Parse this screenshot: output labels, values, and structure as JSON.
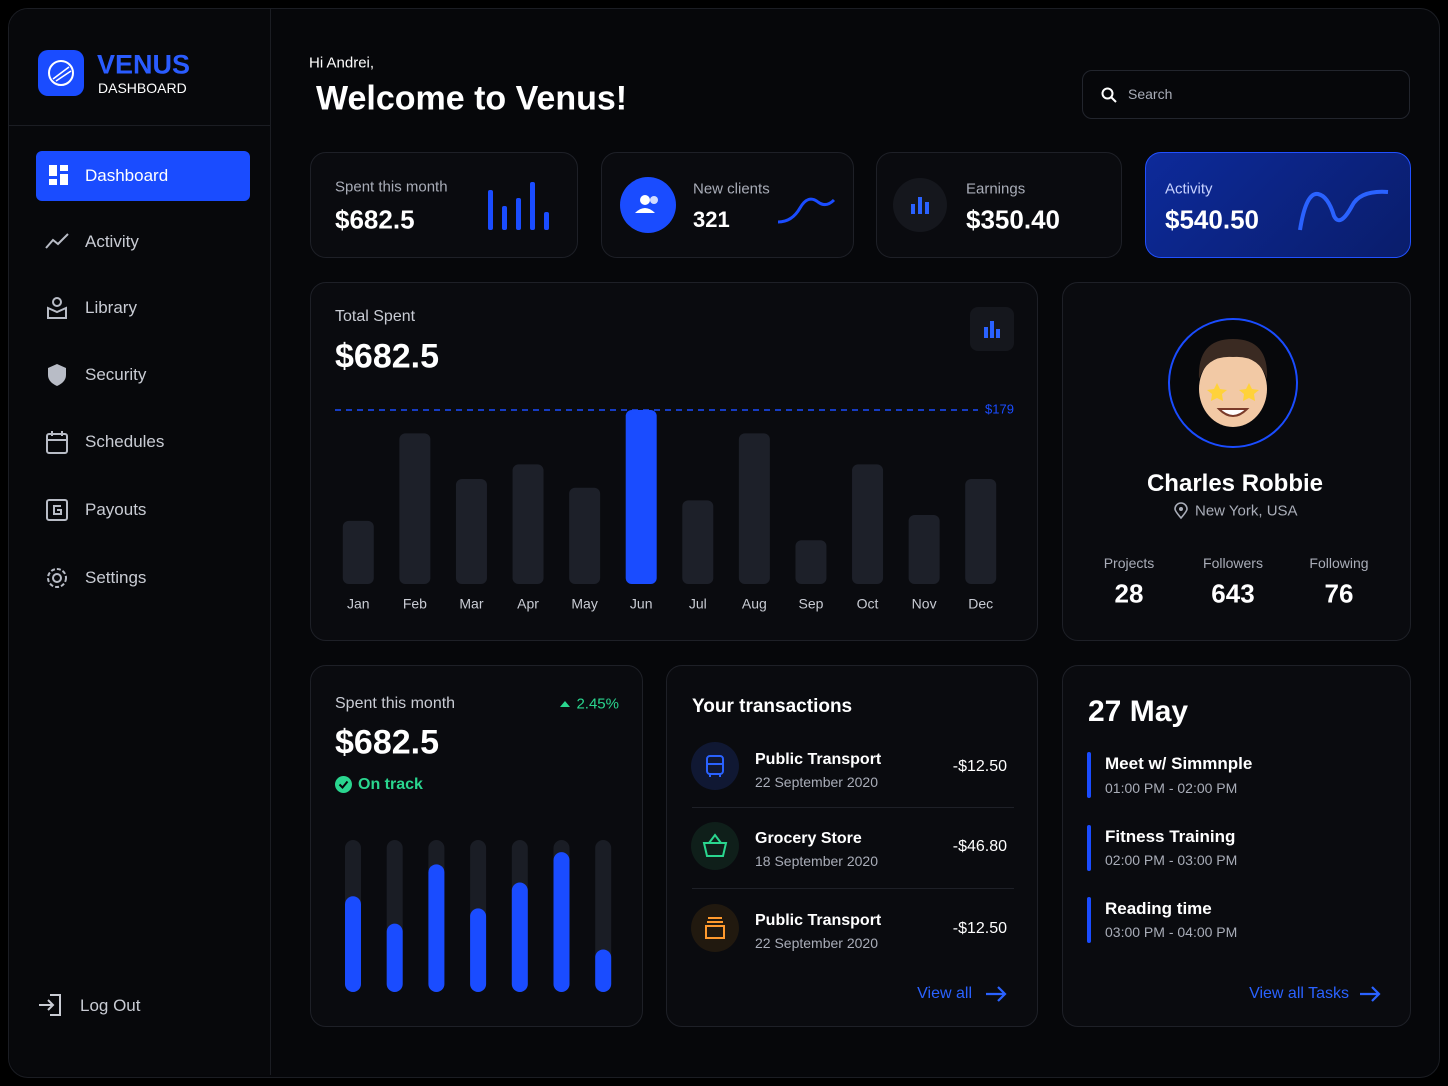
{
  "sidebar": {
    "brand": "VENUS",
    "brand_sub": "DASHBOARD",
    "nav": [
      {
        "label": "Dashboard",
        "active": true
      },
      {
        "label": "Activity"
      },
      {
        "label": "Library"
      },
      {
        "label": "Security"
      },
      {
        "label": "Schedules"
      },
      {
        "label": "Payouts"
      },
      {
        "label": "Settings"
      }
    ],
    "logout": "Log Out"
  },
  "header": {
    "greeting": "Hi Andrei,",
    "title": "Welcome to Venus!",
    "search_placeholder": "Search"
  },
  "stat_cards": [
    {
      "label": "Spent this month",
      "value": "$682.5"
    },
    {
      "label": "New clients",
      "value": "321"
    },
    {
      "label": "Earnings",
      "value": "$350.40"
    },
    {
      "label": "Activity",
      "value": "$540.50"
    }
  ],
  "total_spent": {
    "label": "Total Spent",
    "value": "$682.5"
  },
  "chart_data": [
    {
      "type": "bar",
      "categories": [
        "Jan",
        "Feb",
        "Mar",
        "Apr",
        "May",
        "Jun",
        "Jul",
        "Aug",
        "Sep",
        "Oct",
        "Nov",
        "Dec"
      ],
      "values": [
        65,
        155,
        108,
        123,
        99,
        179,
        86,
        155,
        45,
        123,
        71,
        108
      ],
      "color": "#1d2029",
      "highlight": "Jun",
      "highlight_color": "#1a4cff",
      "reference_line": {
        "value": 179,
        "label": "$179"
      },
      "ylim": [
        0,
        179
      ]
    },
    {
      "type": "bar",
      "values": [
        63,
        45,
        84,
        55,
        72,
        92,
        28
      ],
      "color": "#1a4cff",
      "track_color": "#1a1d25",
      "ylim": [
        0,
        100
      ]
    }
  ],
  "spent_card": {
    "label": "Spent this month",
    "value": "$682.5",
    "change": "2.45%",
    "status": "On track"
  },
  "profile": {
    "name": "Charles Robbie",
    "location": "New York, USA",
    "stats": [
      {
        "label": "Projects",
        "value": "28"
      },
      {
        "label": "Followers",
        "value": "643"
      },
      {
        "label": "Following",
        "value": "76"
      }
    ]
  },
  "transactions": {
    "title": "Your transactions",
    "items": [
      {
        "name": "Public Transport",
        "date": "22 September 2020",
        "amount": "-$12.50"
      },
      {
        "name": "Grocery Store",
        "date": "18 September 2020",
        "amount": "-$46.80"
      },
      {
        "name": "Public Transport",
        "date": "22 September 2020",
        "amount": "-$12.50"
      }
    ],
    "view_all": "View all"
  },
  "tasks": {
    "date": "27 May",
    "items": [
      {
        "title": "Meet w/ Simmnple",
        "time": "01:00 PM - 02:00 PM"
      },
      {
        "title": "Fitness Training",
        "time": "02:00 PM - 03:00 PM"
      },
      {
        "title": "Reading time",
        "time": "03:00 PM - 04:00 PM"
      }
    ],
    "view_all": "View all Tasks"
  }
}
